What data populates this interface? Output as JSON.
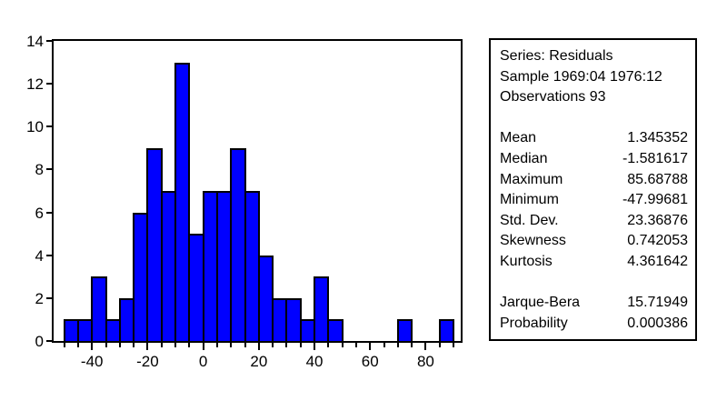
{
  "chart_data": {
    "type": "bar",
    "subtype": "histogram",
    "title": "",
    "xlabel": "",
    "ylabel": "",
    "bar_color": "#0000ff",
    "bar_border_color": "#000000",
    "bin_width": 5,
    "bin_starts": [
      -50,
      -45,
      -40,
      -35,
      -30,
      -25,
      -20,
      -15,
      -10,
      -5,
      0,
      5,
      10,
      15,
      20,
      25,
      30,
      35,
      40,
      45,
      50,
      55,
      60,
      65,
      70,
      75,
      80,
      85
    ],
    "counts": [
      1,
      1,
      3,
      1,
      2,
      6,
      9,
      7,
      13,
      5,
      7,
      7,
      9,
      7,
      4,
      2,
      2,
      1,
      3,
      1,
      0,
      0,
      0,
      0,
      1,
      0,
      0,
      1
    ],
    "total_observations": 93,
    "ylim": [
      0,
      14
    ],
    "y_tick_step": 2,
    "y_tick_labels": [
      "0",
      "2",
      "4",
      "6",
      "8",
      "10",
      "12",
      "14"
    ],
    "x_axis_range": [
      -53.8,
      92.6
    ],
    "x_tick_min": -50,
    "x_tick_max": 90,
    "x_minor_tick_step": 5,
    "x_major_tick_step": 20,
    "x_tick_labels": [
      {
        "value": -40,
        "label": "-40"
      },
      {
        "value": -20,
        "label": "-20"
      },
      {
        "value": 0,
        "label": "0"
      },
      {
        "value": 20,
        "label": "20"
      },
      {
        "value": 40,
        "label": "40"
      },
      {
        "value": 60,
        "label": "60"
      },
      {
        "value": 80,
        "label": "80"
      }
    ],
    "grid": false,
    "legend": "none"
  },
  "stats_box": {
    "header_lines": [
      "Series: Residuals",
      "Sample 1969:04 1976:12",
      "Observations 93"
    ],
    "stats": [
      {
        "label": "Mean",
        "value": "1.345352"
      },
      {
        "label": "Median",
        "value": "-1.581617"
      },
      {
        "label": "Maximum",
        "value": "85.68788"
      },
      {
        "label": "Minimum",
        "value": "-47.99681"
      },
      {
        "label": "Std. Dev.",
        "value": "23.36876"
      },
      {
        "label": "Skewness",
        "value": "0.742053"
      },
      {
        "label": "Kurtosis",
        "value": "4.361642"
      }
    ],
    "tests": [
      {
        "label": "Jarque-Bera",
        "value": "15.71949"
      },
      {
        "label": "Probability",
        "value": "0.000386"
      }
    ]
  }
}
